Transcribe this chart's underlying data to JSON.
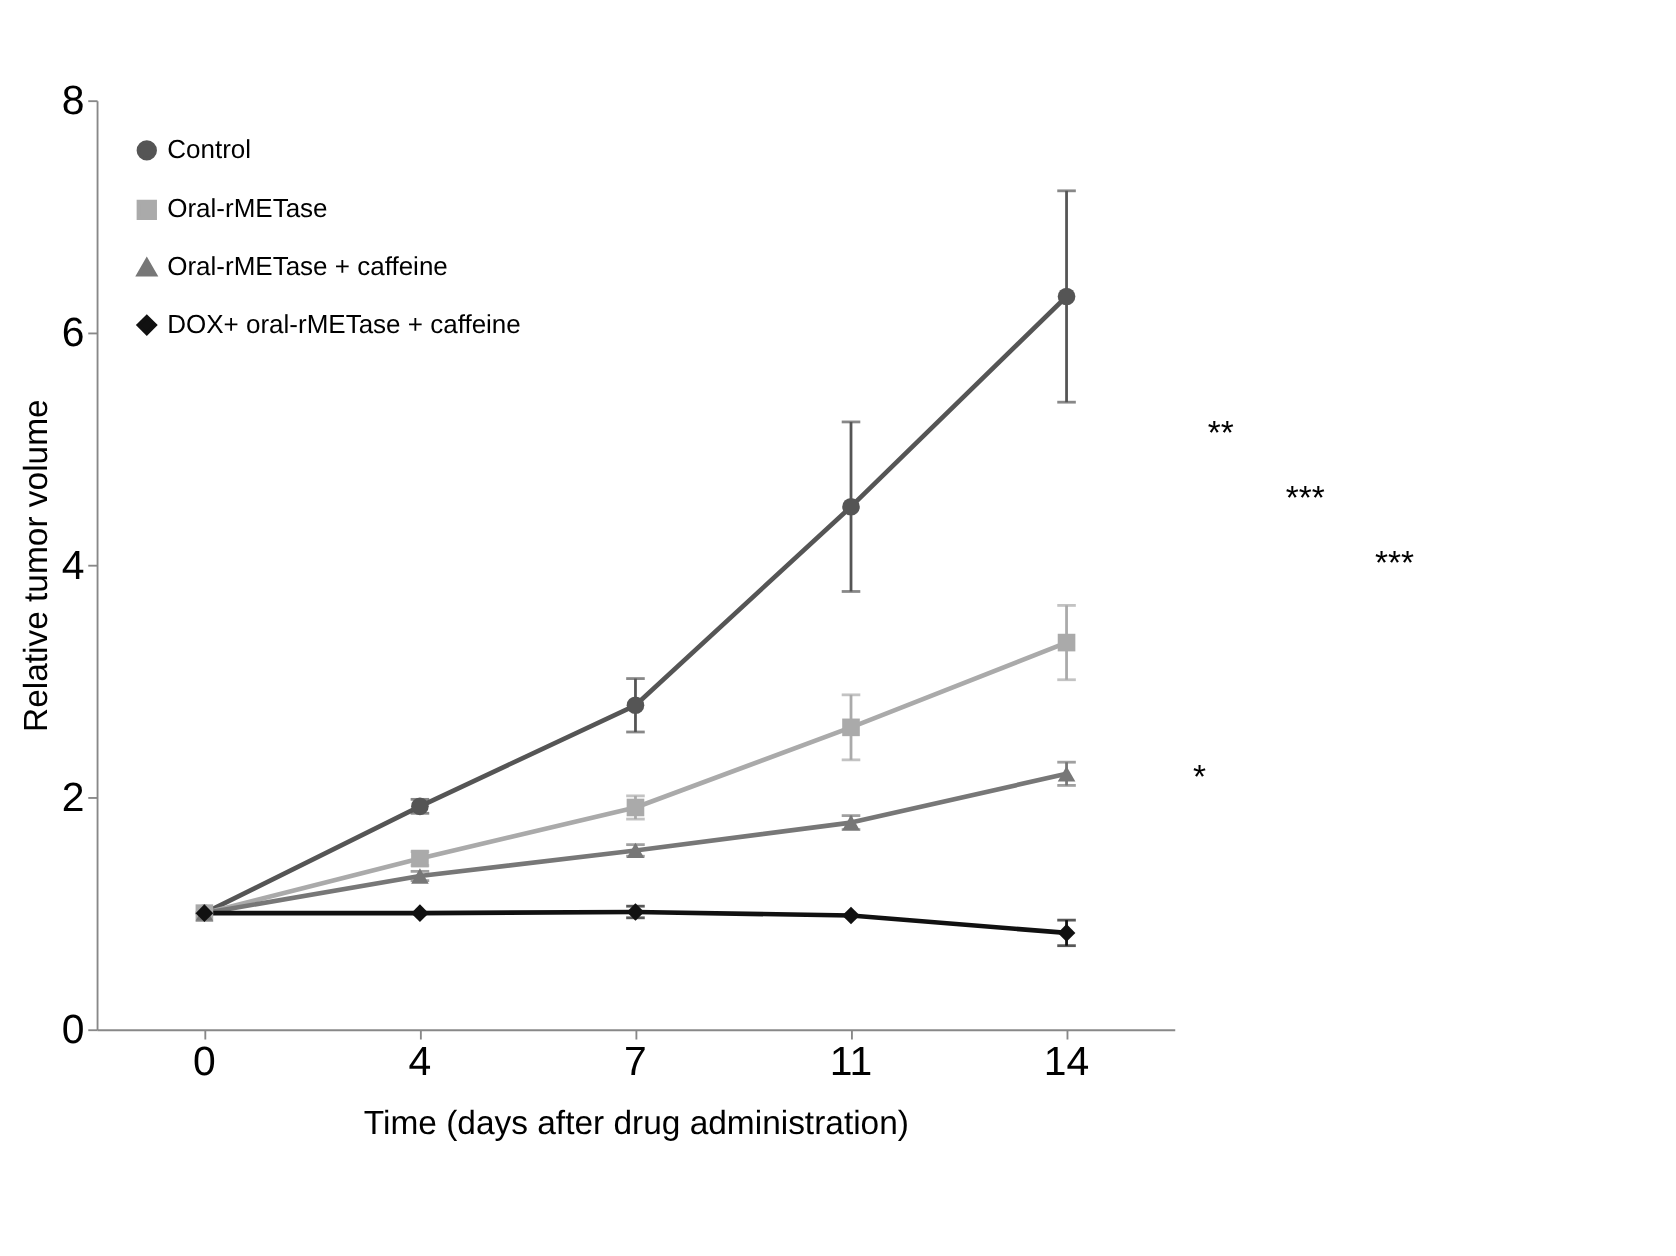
{
  "chart_data": {
    "type": "line",
    "xlabel": "Time (days after drug administration)",
    "ylabel": "Relative tumor volume",
    "categories": [
      "0",
      "4",
      "7",
      "11",
      "14"
    ],
    "series": [
      {
        "name": "Control",
        "color": "#555555",
        "marker": "circle",
        "values": [
          1.0,
          1.92,
          2.79,
          4.5,
          6.31
        ],
        "errors": [
          null,
          0.06,
          0.23,
          0.73,
          0.91
        ]
      },
      {
        "name": "Oral-rMETase",
        "color": "#aaaaaa",
        "marker": "square",
        "values": [
          1.0,
          1.47,
          1.91,
          2.6,
          3.33
        ],
        "errors": [
          null,
          0.06,
          0.1,
          0.28,
          0.32
        ]
      },
      {
        "name": "Oral-rMETase + caffeine",
        "color": "#777777",
        "marker": "triangle",
        "values": [
          1.0,
          1.32,
          1.54,
          1.78,
          2.2
        ],
        "errors": [
          null,
          0.04,
          0.05,
          0.06,
          0.1
        ]
      },
      {
        "name": "DOX+ oral-rMETase + caffeine",
        "color": "#111111",
        "marker": "diamond",
        "values": [
          1.0,
          1.0,
          1.01,
          0.98,
          0.83
        ],
        "errors": [
          null,
          null,
          0.05,
          null,
          0.11
        ]
      }
    ],
    "ylim": [
      0,
      8
    ],
    "yticks": [
      0,
      2,
      4,
      6,
      8
    ],
    "grid": false,
    "legend": "top left",
    "annotations": [
      "**",
      "***",
      "***",
      "*"
    ]
  }
}
